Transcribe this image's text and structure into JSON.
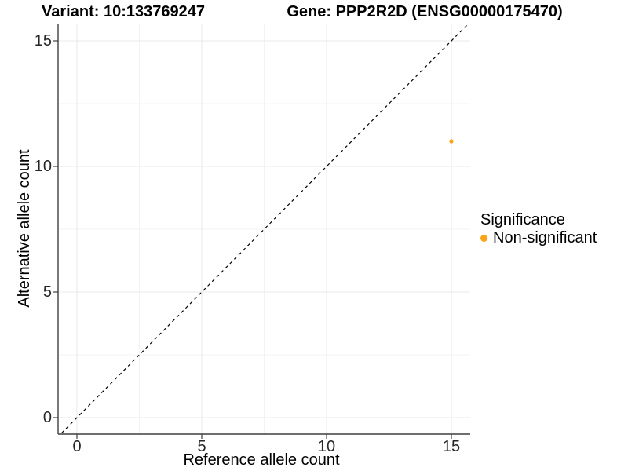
{
  "figure": {
    "title_left": "Variant: 10:133769247",
    "title_right": "Gene: PPP2R2D (ENSG00000175470)"
  },
  "chart_data": {
    "type": "scatter",
    "title": "Variant: 10:133769247 — Gene: PPP2R2D (ENSG00000175470)",
    "xlabel": "Reference allele count",
    "ylabel": "Alternative allele count",
    "xlim": [
      -0.75,
      15.75
    ],
    "ylim": [
      -0.75,
      15.75
    ],
    "x_ticks": [
      0,
      5,
      10,
      15
    ],
    "y_ticks": [
      0,
      5,
      10,
      15
    ],
    "grid": "major and minor gridlines, very light gray, white panel background",
    "series": [
      {
        "name": "Non-significant",
        "color": "#FAA41A",
        "points": [
          {
            "x": 15,
            "y": 11
          }
        ]
      }
    ],
    "reference_line": {
      "equation": "y = x",
      "style": "dashed",
      "color": "#000000"
    },
    "legend": {
      "title": "Significance",
      "position": "right",
      "entries": [
        {
          "label": "Non-significant",
          "color": "#FAA41A"
        }
      ]
    },
    "colors": {
      "grid_major": "#E8E8E8",
      "grid_minor": "#F3F3F3",
      "axis_line": "#3F3F3F",
      "tick_text": "#262626"
    }
  }
}
